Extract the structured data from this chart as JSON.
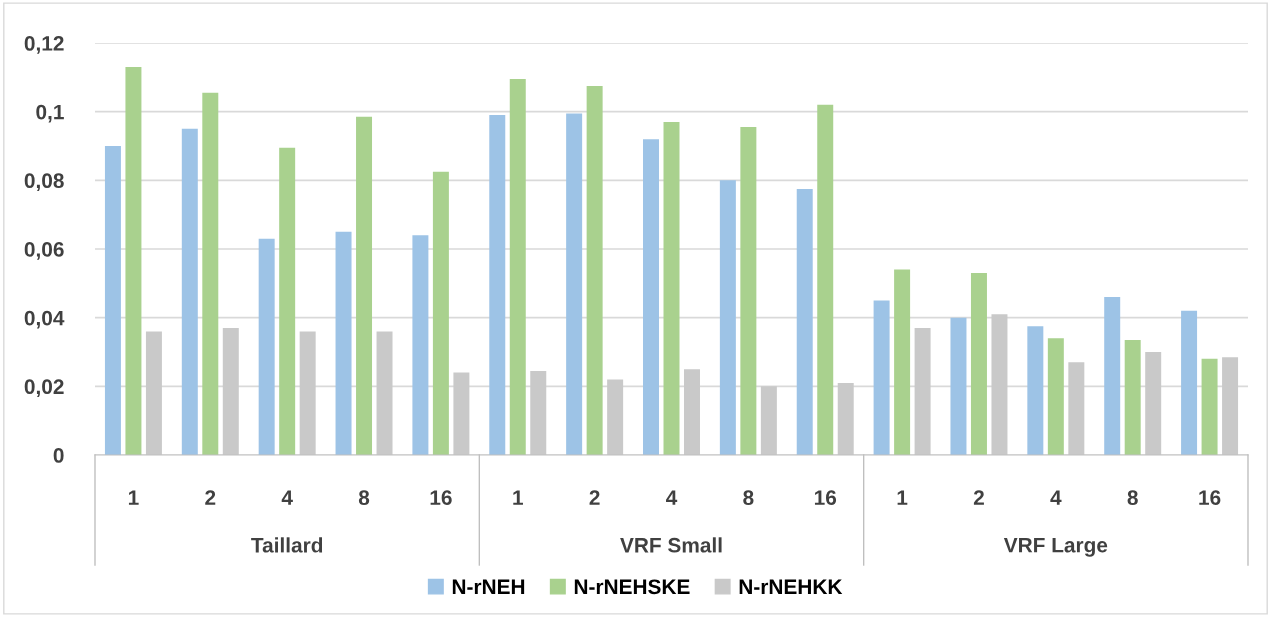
{
  "chart_data": {
    "type": "bar",
    "categories": [
      "1",
      "2",
      "4",
      "8",
      "16",
      "1",
      "2",
      "4",
      "8",
      "16",
      "1",
      "2",
      "4",
      "8",
      "16"
    ],
    "series": [
      {
        "name": "N-rNEH",
        "color": "#9dc3e6",
        "values": [
          0.09,
          0.095,
          0.063,
          0.065,
          0.064,
          0.099,
          0.0995,
          0.092,
          0.08,
          0.0775,
          0.045,
          0.04,
          0.0375,
          0.046,
          0.042
        ]
      },
      {
        "name": "N-rNEHSKE",
        "color": "#a9d18e",
        "values": [
          0.113,
          0.1055,
          0.0895,
          0.0985,
          0.0825,
          0.1095,
          0.1075,
          0.097,
          0.0955,
          0.102,
          0.054,
          0.053,
          0.034,
          0.0335,
          0.028
        ]
      },
      {
        "name": "N-rNEHKK",
        "color": "#c9c9c9",
        "values": [
          0.036,
          0.037,
          0.036,
          0.036,
          0.024,
          0.0245,
          0.022,
          0.025,
          0.02,
          0.021,
          0.037,
          0.041,
          0.027,
          0.03,
          0.0285
        ]
      }
    ],
    "annotations": [
      "Taillard",
      "VRF Small",
      "VRF Large"
    ],
    "ylim": [
      0,
      0.12
    ],
    "yticks": [
      0,
      {
        "value": 0.02,
        "label": "0,02"
      },
      {
        "value": 0.04,
        "label": "0,04"
      },
      {
        "value": 0.06,
        "label": "0,06"
      },
      {
        "value": 0.08,
        "label": "0,08"
      },
      {
        "value": 0.1,
        "label": "0,1"
      },
      {
        "value": 0.12,
        "label": "0,12"
      }
    ],
    "grid": "y",
    "legend": "bottom"
  }
}
